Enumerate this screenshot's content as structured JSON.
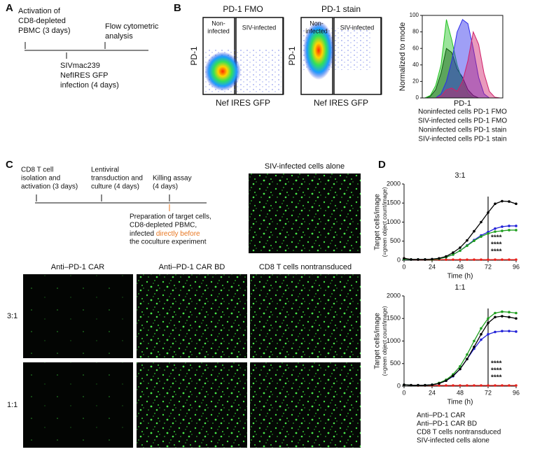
{
  "panel_labels": [
    "A",
    "B",
    "C",
    "D"
  ],
  "panel_a": {
    "step1": [
      "Activation of",
      "CD8-depleted",
      "PBMC (3 days)"
    ],
    "step2": [
      "SIVmac239",
      "NefIRES GFP",
      "infection (4 days)"
    ],
    "step3": [
      "Flow cytometric",
      "analysis"
    ]
  },
  "panel_b": {
    "plots": [
      {
        "title": "PD-1 FMO",
        "y_label": "PD-1",
        "x_label": "Nef IRES GFP",
        "gates": [
          [
            "Non-",
            "infected"
          ],
          [
            "SIV-infected"
          ]
        ]
      },
      {
        "title": "PD-1 stain",
        "y_label": "PD-1",
        "x_label": "Nef IRES GFP",
        "gates": [
          [
            "Non-",
            "infected"
          ],
          [
            "SIV-infected"
          ]
        ]
      }
    ]
  },
  "panel_c": {
    "steps": [
      [
        "CD8 T cell",
        "isolation and",
        "activation (3 days)"
      ],
      [
        "Lentiviral",
        "transduction and",
        "culture (4 days)"
      ],
      [
        "Killing assay",
        "(4 days)"
      ]
    ],
    "note": [
      "Preparation of target cells,",
      "CD8-depleted PBMC,",
      "infected "
    ],
    "note_highlight": [
      "directly before",
      "the coculture experiment"
    ],
    "note_highlight_color": "#e87722",
    "control_title": "SIV-infected cells alone",
    "columns": [
      {
        "text": "Anti–PD-1 CAR",
        "color": "#e8221c"
      },
      {
        "text": "Anti–PD-1 CAR BD",
        "color": "#2323d8"
      },
      {
        "text": "CD8 T cells nontransduced",
        "color": "#1f9e1f"
      }
    ],
    "rows": [
      "3:1",
      "1:1"
    ]
  },
  "chart_data": [
    {
      "type": "area",
      "y_label": "Normalized to mode",
      "x_label": "PD-1",
      "categories": [
        null,
        null,
        null,
        null,
        null,
        null,
        null,
        null,
        null,
        null,
        null,
        null,
        null,
        null,
        null
      ],
      "ylim": [
        0,
        100
      ],
      "yticks": [
        0,
        20,
        40,
        60,
        80,
        100
      ],
      "series": [
        {
          "name": "Noninfected cells PD-1 FMO",
          "color": "#000000",
          "values": [
            0,
            2,
            10,
            30,
            60,
            55,
            35,
            25,
            10,
            3,
            0,
            0,
            0,
            0,
            0
          ]
        },
        {
          "name": "SIV-infected cells PD-1 FMO",
          "color": "#22c322",
          "values": [
            0,
            3,
            15,
            40,
            95,
            70,
            40,
            20,
            5,
            0,
            0,
            0,
            0,
            0,
            0
          ]
        },
        {
          "name": "Noninfected cells PD-1 stain",
          "color": "#2b2bea",
          "values": [
            0,
            0,
            0,
            5,
            20,
            45,
            80,
            95,
            90,
            60,
            25,
            5,
            0,
            0,
            0
          ]
        },
        {
          "name": "SIV-infected cells PD-1 stain",
          "color": "#d0206a",
          "values": [
            0,
            0,
            0,
            2,
            10,
            12,
            8,
            20,
            45,
            80,
            65,
            30,
            8,
            1,
            0
          ]
        }
      ]
    },
    {
      "type": "line",
      "title": "3:1",
      "x_label": "Time (h)",
      "y_label": [
        "Target cells/image",
        "(=green object count/image)"
      ],
      "annotations": [
        "****",
        "****",
        "****"
      ],
      "x": [
        0,
        6,
        12,
        18,
        24,
        30,
        36,
        42,
        48,
        54,
        60,
        66,
        72,
        78,
        84,
        90,
        96
      ],
      "xlim": [
        0,
        96
      ],
      "xticks": [
        0,
        24,
        48,
        72,
        96
      ],
      "ylim": [
        0,
        2000
      ],
      "yticks": [
        0,
        500,
        1000,
        1500,
        2000
      ],
      "series": [
        {
          "color": "#e8221c",
          "values": [
            50,
            20,
            15,
            15,
            15,
            15,
            15,
            15,
            15,
            15,
            15,
            15,
            15,
            15,
            15,
            15,
            15
          ]
        },
        {
          "color": "#2323d8",
          "values": [
            30,
            20,
            20,
            20,
            25,
            40,
            80,
            150,
            250,
            390,
            530,
            650,
            740,
            830,
            880,
            900,
            900
          ]
        },
        {
          "color": "#1f9e1f",
          "values": [
            30,
            20,
            20,
            20,
            20,
            40,
            80,
            150,
            250,
            380,
            510,
            620,
            700,
            750,
            770,
            790,
            790
          ]
        },
        {
          "color": "#000000",
          "values": [
            50,
            20,
            20,
            20,
            30,
            50,
            100,
            200,
            330,
            520,
            760,
            1000,
            1250,
            1480,
            1550,
            1540,
            1480
          ]
        }
      ]
    },
    {
      "type": "line",
      "title": "1:1",
      "x_label": "Time (h)",
      "y_label": [
        "Target cells/image",
        "(=green object count/image)"
      ],
      "annotations": [
        "****",
        "****",
        "****"
      ],
      "x": [
        0,
        6,
        12,
        18,
        24,
        30,
        36,
        42,
        48,
        54,
        60,
        66,
        72,
        78,
        84,
        90,
        96
      ],
      "xlim": [
        0,
        96
      ],
      "xticks": [
        0,
        24,
        48,
        72,
        96
      ],
      "ylim": [
        0,
        2000
      ],
      "yticks": [
        0,
        500,
        1000,
        1500,
        2000
      ],
      "series": [
        {
          "name": "Anti–PD-1 CAR",
          "color": "#e8221c",
          "values": [
            30,
            20,
            15,
            15,
            15,
            15,
            15,
            15,
            15,
            15,
            15,
            15,
            15,
            15,
            15,
            15,
            15
          ]
        },
        {
          "name": "Anti–PD-1 CAR BD",
          "color": "#2323d8",
          "values": [
            30,
            20,
            20,
            20,
            30,
            60,
            120,
            220,
            380,
            600,
            830,
            1030,
            1150,
            1200,
            1220,
            1220,
            1210
          ]
        },
        {
          "name": "CD8 T cells nontransduced",
          "color": "#1f9e1f",
          "values": [
            30,
            20,
            20,
            20,
            30,
            70,
            140,
            260,
            440,
            700,
            1000,
            1280,
            1500,
            1620,
            1650,
            1640,
            1620
          ]
        },
        {
          "name": "SIV-infected cells alone",
          "color": "#000000",
          "values": [
            30,
            20,
            20,
            20,
            30,
            60,
            120,
            230,
            380,
            600,
            870,
            1150,
            1400,
            1530,
            1550,
            1530,
            1500
          ]
        }
      ]
    }
  ]
}
